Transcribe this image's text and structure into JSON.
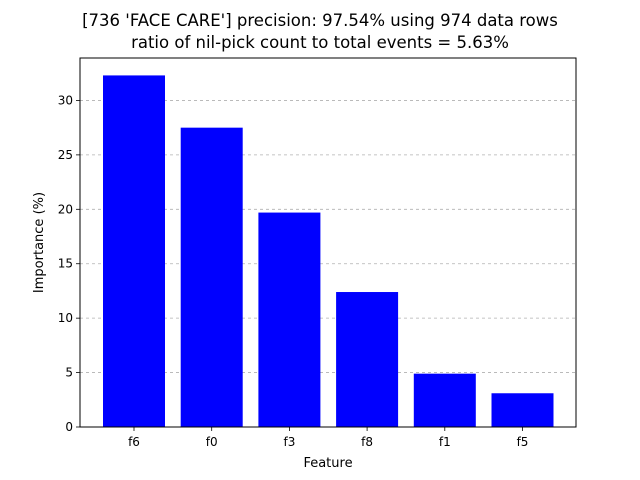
{
  "title": {
    "line1": "[736 'FACE CARE'] precision: 97.54% using 974 data rows",
    "line2": "ratio of nil-pick count to total events = 5.63%"
  },
  "chart_data": {
    "type": "bar",
    "title": "[736 'FACE CARE'] precision: 97.54% using 974 data rows\nratio of nil-pick count to total events = 5.63%",
    "xlabel": "Feature",
    "ylabel": "Importance (%)",
    "categories": [
      "f6",
      "f0",
      "f3",
      "f8",
      "f1",
      "f5"
    ],
    "values": [
      32.3,
      27.5,
      19.7,
      12.4,
      4.9,
      3.1
    ],
    "ylim": [
      0,
      33.9
    ],
    "yticks": [
      0,
      5,
      10,
      15,
      20,
      25,
      30
    ],
    "grid": "y-dashed",
    "bar_color": "#0000ff",
    "legend": "none"
  }
}
